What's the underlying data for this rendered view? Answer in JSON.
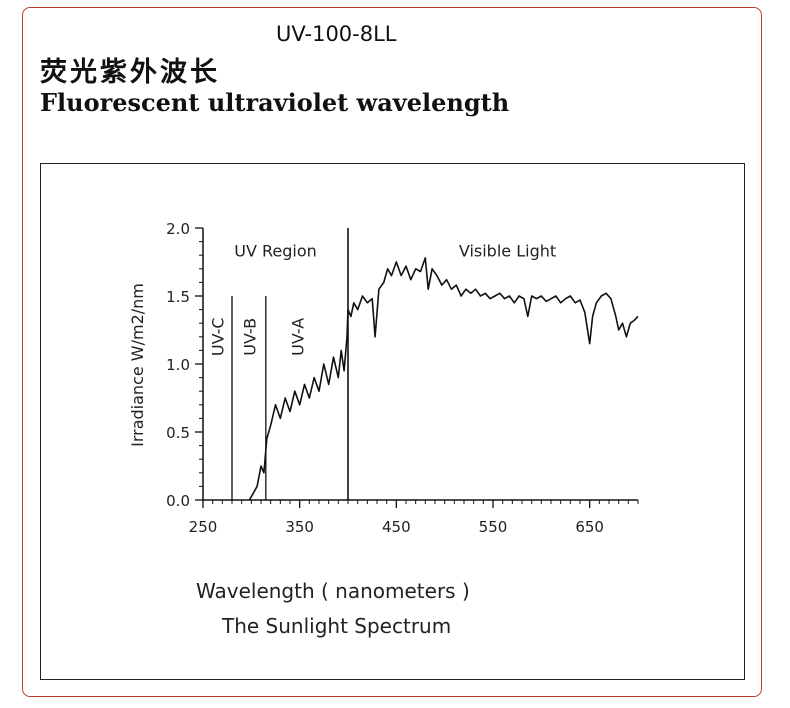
{
  "header": {
    "model": "UV-100-8LL",
    "title_cn": "荧光紫外波长",
    "title_en": "Fluorescent ultraviolet wavelength"
  },
  "caption": "The Sunlight Spectrum",
  "chart_data": {
    "type": "line",
    "xlabel": "Wavelength ( nanometers )",
    "ylabel": "Irradiance  W/m2/nm",
    "xlim": [
      250,
      700
    ],
    "ylim": [
      0.0,
      2.0
    ],
    "x_ticks": [
      "250",
      "350",
      "450",
      "550",
      "650"
    ],
    "y_ticks": [
      "0.0",
      "0.5",
      "1.0",
      "1.5",
      "2.0"
    ],
    "grid": false,
    "region_labels": {
      "uv_region": "UV Region",
      "visible_light": "Visible Light",
      "uv_c": "UV-C",
      "uv_b": "UV-B",
      "uv_a": "UV-A"
    },
    "dividers": [
      280,
      315,
      400
    ],
    "series": [
      {
        "x": [
          298,
          302,
          306,
          310,
          313,
          316,
          320,
          325,
          330,
          335,
          340,
          345,
          350,
          355,
          360,
          365,
          370,
          375,
          380,
          385,
          390,
          393,
          396,
          399,
          400,
          403,
          406,
          410,
          415,
          420,
          425,
          428,
          432,
          437,
          441,
          445,
          450,
          455,
          460,
          465,
          470,
          475,
          480,
          483,
          487,
          492,
          497,
          502,
          507,
          512,
          517,
          522,
          527,
          532,
          537,
          542,
          547,
          552,
          557,
          562,
          567,
          572,
          577,
          582,
          586,
          590,
          595,
          600,
          605,
          610,
          615,
          620,
          625,
          630,
          635,
          640,
          645,
          650,
          653,
          657,
          662,
          667,
          672,
          677,
          680,
          684,
          688,
          692,
          696,
          700
        ],
        "y": [
          0.0,
          0.05,
          0.1,
          0.25,
          0.2,
          0.45,
          0.55,
          0.7,
          0.6,
          0.75,
          0.65,
          0.8,
          0.7,
          0.85,
          0.75,
          0.9,
          0.8,
          1.0,
          0.85,
          1.05,
          0.9,
          1.1,
          0.95,
          1.2,
          1.4,
          1.35,
          1.45,
          1.4,
          1.5,
          1.45,
          1.48,
          1.2,
          1.55,
          1.6,
          1.7,
          1.65,
          1.75,
          1.65,
          1.72,
          1.62,
          1.7,
          1.68,
          1.78,
          1.55,
          1.7,
          1.65,
          1.58,
          1.62,
          1.55,
          1.58,
          1.5,
          1.55,
          1.52,
          1.55,
          1.5,
          1.52,
          1.48,
          1.5,
          1.52,
          1.48,
          1.5,
          1.45,
          1.5,
          1.48,
          1.35,
          1.5,
          1.48,
          1.5,
          1.46,
          1.48,
          1.5,
          1.45,
          1.48,
          1.5,
          1.45,
          1.47,
          1.38,
          1.15,
          1.35,
          1.45,
          1.5,
          1.52,
          1.48,
          1.35,
          1.25,
          1.3,
          1.2,
          1.3,
          1.32,
          1.35
        ]
      }
    ]
  }
}
